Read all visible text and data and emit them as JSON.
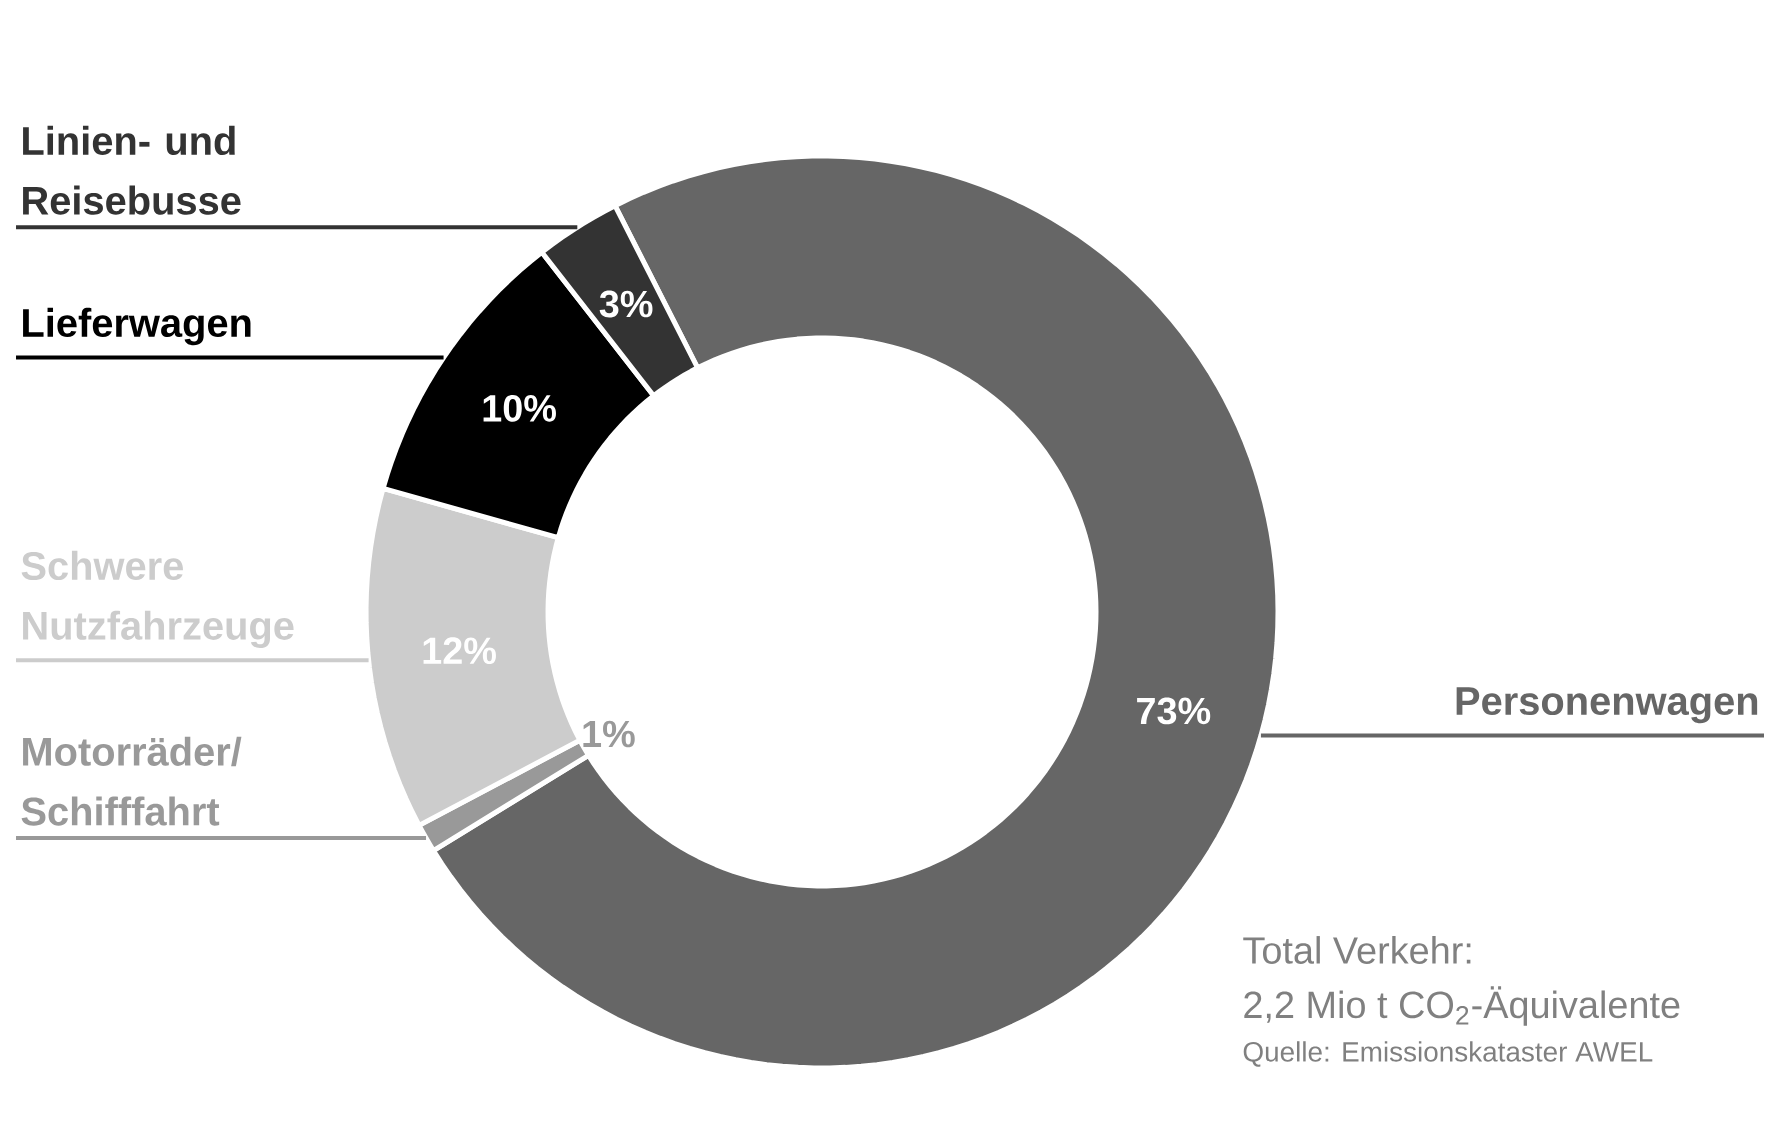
{
  "chart_data": {
    "type": "donut",
    "categories": [
      "Personenwagen",
      "Motorräder/ Schifffahrt",
      "Schwere Nutzfahrzeuge",
      "Lieferwagen",
      "Linien- und Reisebusse"
    ],
    "values": [
      73,
      1,
      12,
      10,
      3
    ],
    "value_labels": [
      "73%",
      "1%",
      "12%",
      "10%",
      "3%"
    ],
    "colors": [
      "#666666",
      "#999999",
      "#cccccc",
      "#000000",
      "#333333"
    ],
    "annotations": [
      "Total Verkehr:",
      "2,2 Mio t CO$_{2}$-Äquivalente",
      "Quelle: Emissionskataster AWEL"
    ]
  }
}
